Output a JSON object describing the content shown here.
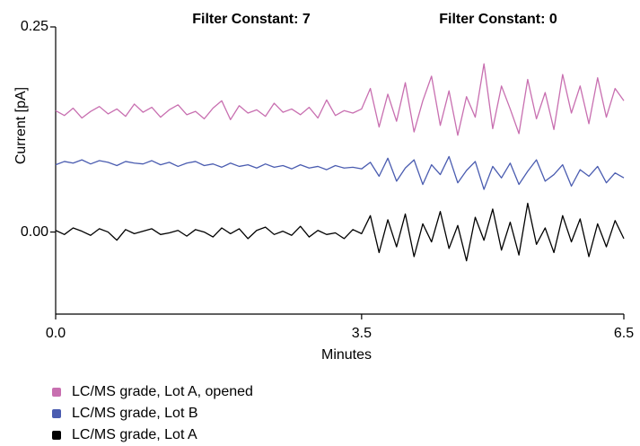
{
  "chart_data": {
    "type": "line",
    "annotations": [
      "Filter Constant: 7",
      "Filter Constant: 0"
    ],
    "xlabel": "Minutes",
    "ylabel": "Current [pA]",
    "xlim": [
      0,
      6.5
    ],
    "xticks": [
      {
        "value": 0,
        "label": "0.0"
      },
      {
        "value": 3.5,
        "label": "3.5"
      },
      {
        "value": 6.5,
        "label": "6.5"
      }
    ],
    "ylim": [
      -0.1,
      0.25
    ],
    "yticks": [
      {
        "value": 0,
        "label": "0.00"
      },
      {
        "value": 0.25,
        "label": "0.25"
      }
    ],
    "x": [
      0.0,
      0.1,
      0.2,
      0.3,
      0.4,
      0.5,
      0.6,
      0.7,
      0.8,
      0.9,
      1.0,
      1.1,
      1.2,
      1.3,
      1.4,
      1.5,
      1.6,
      1.7,
      1.8,
      1.9,
      2.0,
      2.1,
      2.2,
      2.3,
      2.4,
      2.5,
      2.6,
      2.7,
      2.8,
      2.9,
      3.0,
      3.1,
      3.2,
      3.3,
      3.4,
      3.5,
      3.6,
      3.7,
      3.8,
      3.9,
      4.0,
      4.1,
      4.2,
      4.3,
      4.4,
      4.5,
      4.6,
      4.7,
      4.8,
      4.9,
      5.0,
      5.1,
      5.2,
      5.3,
      5.4,
      5.5,
      5.6,
      5.7,
      5.8,
      5.9,
      6.0,
      6.1,
      6.2,
      6.3,
      6.4,
      6.5
    ],
    "series": [
      {
        "name": "LC/MS grade, Lot A, opened",
        "color": "#c86fb0",
        "values": [
          0.148,
          0.142,
          0.151,
          0.139,
          0.147,
          0.153,
          0.144,
          0.15,
          0.141,
          0.156,
          0.146,
          0.152,
          0.14,
          0.149,
          0.155,
          0.143,
          0.147,
          0.138,
          0.151,
          0.16,
          0.137,
          0.154,
          0.145,
          0.149,
          0.141,
          0.157,
          0.146,
          0.15,
          0.143,
          0.152,
          0.139,
          0.161,
          0.142,
          0.148,
          0.145,
          0.15,
          0.175,
          0.128,
          0.168,
          0.135,
          0.182,
          0.122,
          0.16,
          0.19,
          0.13,
          0.172,
          0.118,
          0.165,
          0.14,
          0.205,
          0.126,
          0.178,
          0.15,
          0.12,
          0.186,
          0.138,
          0.17,
          0.125,
          0.192,
          0.145,
          0.178,
          0.132,
          0.188,
          0.14,
          0.175,
          0.16
        ]
      },
      {
        "name": "LC/MS grade, Lot B",
        "color": "#4a5cb0",
        "values": [
          0.082,
          0.086,
          0.084,
          0.088,
          0.083,
          0.087,
          0.085,
          0.081,
          0.086,
          0.084,
          0.083,
          0.087,
          0.082,
          0.085,
          0.08,
          0.084,
          0.086,
          0.081,
          0.083,
          0.079,
          0.084,
          0.08,
          0.082,
          0.078,
          0.083,
          0.079,
          0.081,
          0.077,
          0.082,
          0.078,
          0.08,
          0.076,
          0.081,
          0.078,
          0.079,
          0.077,
          0.085,
          0.068,
          0.09,
          0.062,
          0.078,
          0.088,
          0.058,
          0.082,
          0.07,
          0.092,
          0.06,
          0.075,
          0.086,
          0.052,
          0.08,
          0.066,
          0.084,
          0.058,
          0.074,
          0.088,
          0.062,
          0.07,
          0.082,
          0.056,
          0.076,
          0.068,
          0.08,
          0.06,
          0.072,
          0.066
        ]
      },
      {
        "name": "LC/MS grade, Lot A",
        "color": "#000000",
        "values": [
          0.002,
          -0.003,
          0.005,
          0.001,
          -0.004,
          0.004,
          0.0,
          -0.01,
          0.003,
          -0.002,
          0.001,
          0.004,
          -0.003,
          -0.001,
          0.002,
          -0.005,
          0.003,
          0.0,
          -0.006,
          0.005,
          -0.002,
          0.004,
          -0.008,
          0.002,
          0.006,
          -0.003,
          0.001,
          -0.004,
          0.007,
          -0.006,
          0.002,
          -0.003,
          -0.001,
          -0.008,
          0.003,
          -0.002,
          0.02,
          -0.025,
          0.015,
          -0.018,
          0.022,
          -0.03,
          0.01,
          -0.012,
          0.025,
          -0.02,
          0.008,
          -0.035,
          0.018,
          -0.01,
          0.028,
          -0.022,
          0.012,
          -0.028,
          0.035,
          -0.015,
          0.005,
          -0.025,
          0.02,
          -0.012,
          0.016,
          -0.03,
          0.01,
          -0.018,
          0.014,
          -0.008
        ]
      }
    ]
  }
}
